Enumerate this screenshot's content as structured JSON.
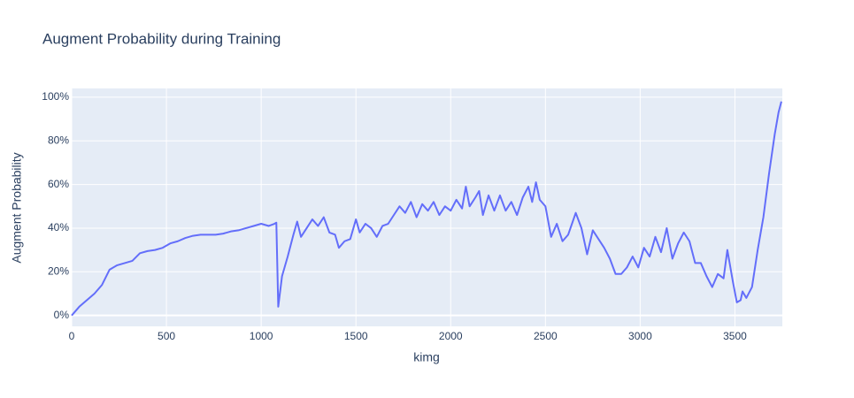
{
  "chart_data": {
    "type": "line",
    "title": "Augment Probability during Training",
    "x_label": "kimg",
    "y_label": "Augment Probability",
    "color": "#636efa",
    "grid": true,
    "xlim": [
      0,
      3750
    ],
    "ylim": [
      -5,
      104
    ],
    "xticks": [
      0,
      500,
      1000,
      1500,
      2000,
      2500,
      3000,
      3500
    ],
    "yticks": [
      {
        "value": 0,
        "label": "0%"
      },
      {
        "value": 20,
        "label": "20%"
      },
      {
        "value": 40,
        "label": "40%"
      },
      {
        "value": 60,
        "label": "60%"
      },
      {
        "value": 80,
        "label": "80%"
      },
      {
        "value": 100,
        "label": "100%"
      }
    ],
    "x": [
      0,
      40,
      80,
      120,
      160,
      200,
      240,
      280,
      320,
      360,
      400,
      440,
      480,
      520,
      560,
      600,
      640,
      680,
      720,
      760,
      800,
      840,
      880,
      920,
      960,
      1000,
      1040,
      1070,
      1080,
      1090,
      1110,
      1140,
      1170,
      1190,
      1210,
      1240,
      1270,
      1300,
      1330,
      1360,
      1390,
      1410,
      1440,
      1470,
      1500,
      1520,
      1550,
      1580,
      1610,
      1640,
      1670,
      1700,
      1730,
      1760,
      1790,
      1820,
      1850,
      1880,
      1910,
      1940,
      1970,
      2000,
      2030,
      2060,
      2080,
      2100,
      2130,
      2150,
      2170,
      2200,
      2230,
      2260,
      2290,
      2320,
      2350,
      2380,
      2410,
      2430,
      2450,
      2470,
      2500,
      2530,
      2560,
      2590,
      2620,
      2660,
      2690,
      2720,
      2750,
      2780,
      2810,
      2840,
      2870,
      2900,
      2930,
      2960,
      2990,
      3020,
      3050,
      3080,
      3110,
      3140,
      3170,
      3200,
      3230,
      3260,
      3290,
      3320,
      3350,
      3380,
      3410,
      3440,
      3460,
      3490,
      3510,
      3530,
      3540,
      3560,
      3590,
      3620,
      3650,
      3680,
      3710,
      3730,
      3745
    ],
    "values": [
      0,
      4,
      7,
      10,
      14,
      21,
      23,
      24,
      25,
      28.5,
      29.5,
      30,
      31,
      33,
      34,
      35.5,
      36.5,
      37,
      37,
      37,
      37.5,
      38.5,
      39,
      40,
      41,
      42,
      41,
      42,
      42.5,
      4,
      18,
      27,
      37,
      43,
      36,
      40,
      44,
      41,
      45,
      38,
      37,
      31,
      34,
      35,
      44,
      38,
      42,
      40,
      36,
      41,
      42,
      46,
      50,
      47,
      52,
      45,
      51,
      48,
      52,
      46,
      50,
      48,
      53,
      49,
      59,
      50,
      54,
      57,
      46,
      55,
      48,
      55,
      48,
      52,
      46,
      54,
      59,
      52,
      61,
      53,
      50,
      36,
      42,
      34,
      37,
      47,
      40,
      28,
      39,
      35,
      31,
      26,
      19,
      19,
      22,
      27,
      22,
      31,
      27,
      36,
      29,
      40,
      26,
      33,
      38,
      34,
      24,
      24,
      18,
      13,
      19,
      17,
      30,
      15,
      6,
      7,
      11,
      8,
      13,
      30,
      45,
      65,
      83,
      93,
      98
    ]
  }
}
